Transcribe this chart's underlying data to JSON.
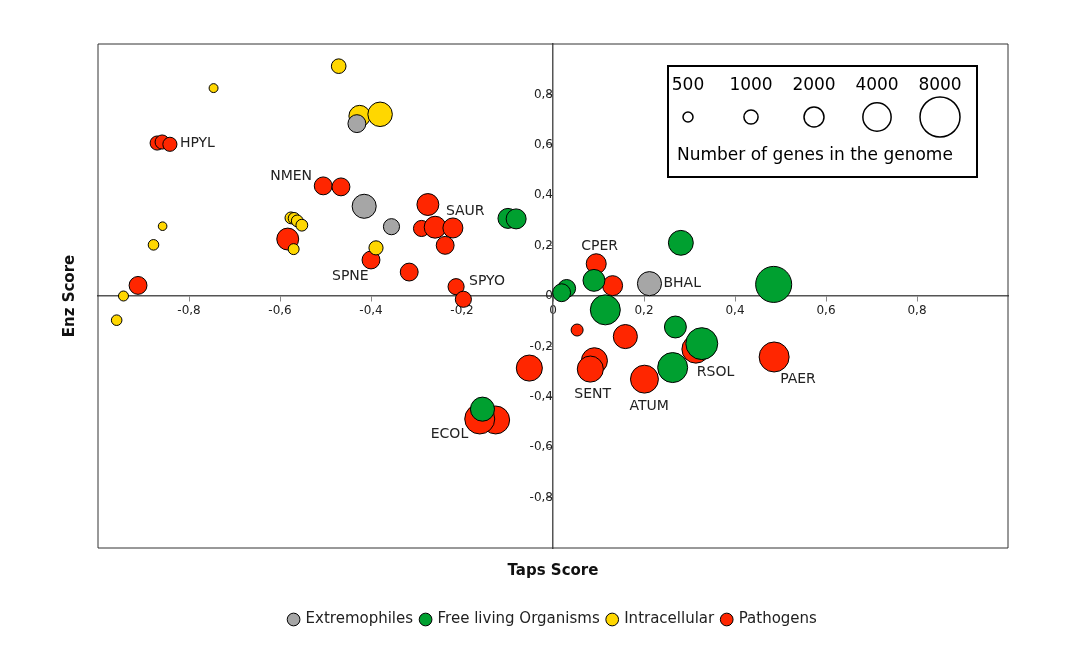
{
  "chart_data": {
    "type": "bubble",
    "xlabel": "Taps Score",
    "ylabel": "Enz Score",
    "xlim": [
      -1,
      1
    ],
    "ylim": [
      -1,
      1
    ],
    "xticks": [
      {
        "value": -0.8,
        "label": "-0,8"
      },
      {
        "value": -0.6,
        "label": "-0,6"
      },
      {
        "value": -0.4,
        "label": "-0,4"
      },
      {
        "value": -0.2,
        "label": "-0,2"
      },
      0,
      {
        "value": 0.2,
        "label": "0,2"
      },
      {
        "value": 0.4,
        "label": "0,4"
      },
      {
        "value": 0.6,
        "label": "0,6"
      },
      {
        "value": 0.8,
        "label": "0,8"
      }
    ],
    "yticks": [
      {
        "value": -0.8,
        "label": "-0,8"
      },
      {
        "value": -0.6,
        "label": "-0,6"
      },
      {
        "value": -0.4,
        "label": "-0,4"
      },
      {
        "value": -0.2,
        "label": "-0,2"
      },
      0,
      {
        "value": 0.2,
        "label": "0,2"
      },
      {
        "value": 0.4,
        "label": "0,4"
      },
      {
        "value": 0.6,
        "label": "0,6"
      },
      {
        "value": 0.8,
        "label": "0,8"
      }
    ],
    "size_legend": [
      500,
      1000,
      2000,
      4000,
      8000
    ],
    "legend": "bottom",
    "marker": "circle",
    "series": [
      {
        "name": "Extremophiles",
        "color": "#a6a6a6",
        "x": [
          -0.431,
          -0.415,
          -0.355,
          0.212
        ],
        "values": [
          0.684,
          0.356,
          0.275,
          0.049
        ],
        "sizes": [
          1600,
          2900,
          1300,
          2900
        ]
      },
      {
        "name": "Free living Organisms",
        "color": "#00a030",
        "x": [
          -0.099,
          -0.081,
          0.281,
          0.485,
          0.03,
          0.019,
          0.09,
          0.115,
          0.269,
          0.327,
          0.263,
          -0.155
        ],
        "values": [
          0.308,
          0.306,
          0.211,
          0.046,
          0.03,
          0.013,
          0.062,
          -0.055,
          -0.123,
          -0.189,
          -0.284,
          -0.449
        ],
        "sizes": [
          2000,
          2000,
          3100,
          6500,
          1600,
          1600,
          2400,
          4500,
          2400,
          5100,
          4500,
          2900
        ]
      },
      {
        "name": "Intracellular",
        "color": "#ffd700",
        "x": [
          -0.471,
          -0.746,
          -0.425,
          -0.38,
          -0.858,
          -0.878,
          -0.944,
          -0.959,
          -0.576,
          -0.569,
          -0.562,
          -0.552,
          -0.57,
          -0.389
        ],
        "values": [
          0.912,
          0.825,
          0.714,
          0.721,
          0.277,
          0.203,
          0.0,
          -0.096,
          0.31,
          0.308,
          0.298,
          0.281,
          0.186,
          0.191
        ],
        "sizes": [
          1070,
          400,
          2300,
          3000,
          370,
          560,
          500,
          560,
          700,
          700,
          700,
          700,
          600,
          1000
        ]
      },
      {
        "name": "Pathogens",
        "color": "#ff2600",
        "x": [
          -0.87,
          -0.859,
          -0.842,
          -0.912,
          -0.505,
          -0.466,
          -0.583,
          -0.4,
          -0.316,
          -0.275,
          -0.289,
          -0.259,
          -0.22,
          -0.237,
          -0.213,
          -0.197,
          0.095,
          0.131,
          0.053,
          0.159,
          0.091,
          0.082,
          0.201,
          0.314,
          0.486,
          -0.052,
          -0.126,
          -0.161
        ],
        "values": [
          0.607,
          0.611,
          0.602,
          0.042,
          0.437,
          0.433,
          0.226,
          0.143,
          0.095,
          0.363,
          0.268,
          0.273,
          0.27,
          0.201,
          0.037,
          -0.013,
          0.128,
          0.041,
          -0.135,
          -0.161,
          -0.257,
          -0.29,
          -0.33,
          -0.211,
          -0.242,
          -0.286,
          -0.492,
          -0.488
        ],
        "sizes": [
          1000,
          1000,
          1000,
          1600,
          1600,
          1600,
          2400,
          1600,
          1600,
          2400,
          1300,
          2400,
          2000,
          1600,
          1300,
          1300,
          2000,
          2000,
          720,
          2900,
          3400,
          3400,
          3900,
          3900,
          4500,
          3400,
          3900,
          4500
        ]
      }
    ],
    "annotations": [
      "Number of genes in the genome",
      {
        "text": "HPYL",
        "x": -0.842,
        "y": 0.602
      },
      {
        "text": "NMEN",
        "x": -0.505,
        "y": 0.437
      },
      {
        "text": "SPNE",
        "x": -0.4,
        "y": 0.143
      },
      {
        "text": "SAUR",
        "x": -0.275,
        "y": 0.363
      },
      {
        "text": "SPYO",
        "x": -0.213,
        "y": 0.037
      },
      {
        "text": "CPER",
        "x": 0.095,
        "y": 0.128
      },
      {
        "text": "BHAL",
        "x": 0.212,
        "y": 0.049
      },
      {
        "text": "RSOL",
        "x": 0.314,
        "y": -0.211
      },
      {
        "text": "PAER",
        "x": 0.486,
        "y": -0.242
      },
      {
        "text": "SENT",
        "x": 0.082,
        "y": -0.29
      },
      {
        "text": "ATUM",
        "x": 0.201,
        "y": -0.33
      },
      {
        "text": "ECOL",
        "x": -0.161,
        "y": -0.488
      }
    ]
  }
}
